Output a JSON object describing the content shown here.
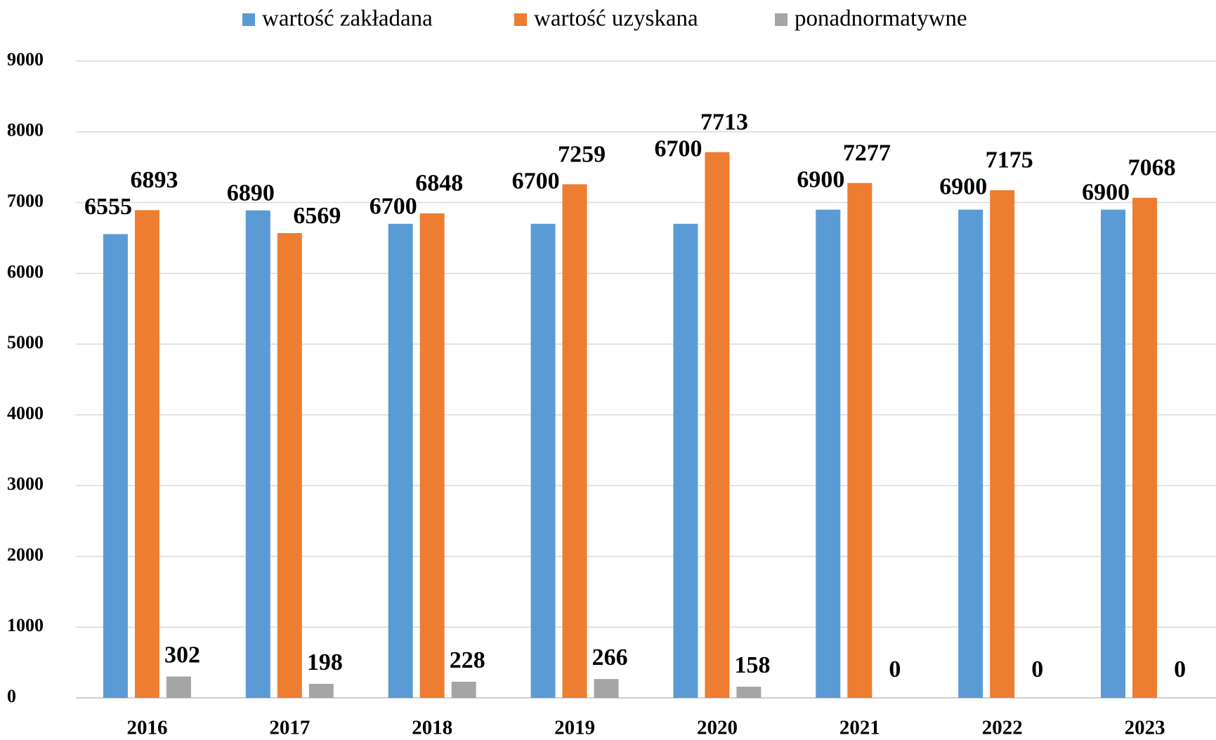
{
  "chart_data": {
    "type": "bar",
    "categories": [
      "2016",
      "2017",
      "2018",
      "2019",
      "2020",
      "2021",
      "2022",
      "2023"
    ],
    "series": [
      {
        "name": "wartość zakładana",
        "color": "#5b9bd5",
        "values": [
          6555,
          6890,
          6700,
          6700,
          6700,
          6900,
          6900,
          6900
        ]
      },
      {
        "name": "wartość uzyskana",
        "color": "#ed7d31",
        "values": [
          6893,
          6569,
          6848,
          7259,
          7713,
          7277,
          7175,
          7068
        ]
      },
      {
        "name": "ponadnormatywne",
        "color": "#a5a5a5",
        "values": [
          302,
          198,
          228,
          266,
          158,
          0,
          0,
          0
        ]
      }
    ],
    "ylim": [
      0,
      9000
    ],
    "yticks": [
      0,
      1000,
      2000,
      3000,
      4000,
      5000,
      6000,
      7000,
      8000,
      9000
    ],
    "grid": true,
    "legend": "top"
  }
}
